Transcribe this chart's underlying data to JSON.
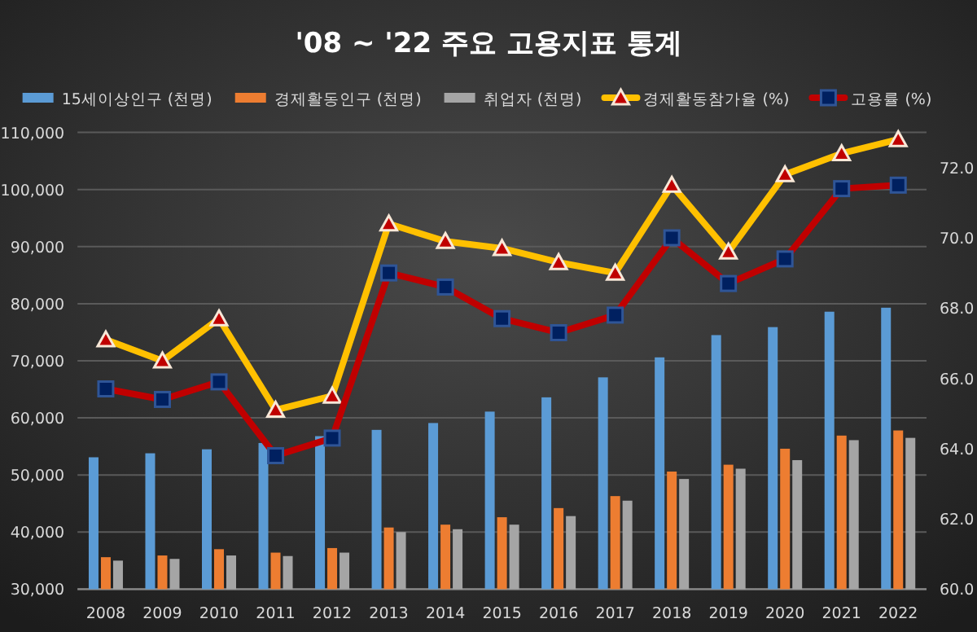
{
  "chart_data": {
    "type": "bar",
    "title": "'08 ~ '22 주요 고용지표 통계",
    "categories": [
      "2008",
      "2009",
      "2010",
      "2011",
      "2012",
      "2013",
      "2014",
      "2015",
      "2016",
      "2017",
      "2018",
      "2019",
      "2020",
      "2021",
      "2022"
    ],
    "series": [
      {
        "name": "15세이상인구 (천명)",
        "color": "#5b9bd5",
        "values": [
          53100,
          53800,
          54500,
          55600,
          56800,
          57900,
          59100,
          61100,
          63600,
          67100,
          70600,
          74500,
          75900,
          78600,
          79300
        ]
      },
      {
        "name": "경제활동인구 (천명)",
        "color": "#ed7d31",
        "values": [
          35600,
          35900,
          37000,
          36400,
          37200,
          40800,
          41300,
          42600,
          44200,
          46300,
          50600,
          51800,
          54600,
          56900,
          57800
        ]
      },
      {
        "name": "취업자 (천명)",
        "color": "#a5a5a5",
        "values": [
          35000,
          35300,
          35900,
          35800,
          36400,
          40000,
          40500,
          41300,
          42800,
          45500,
          49300,
          51100,
          52600,
          56100,
          56500
        ]
      },
      {
        "name": "경제활동참가율 (%)",
        "type": "line",
        "axis": "y2",
        "color": "#ffc000",
        "marker": "triangle",
        "values": [
          67.1,
          66.5,
          67.7,
          65.1,
          65.5,
          70.4,
          69.9,
          69.7,
          69.3,
          69.0,
          71.5,
          69.6,
          71.8,
          72.4,
          72.8
        ]
      },
      {
        "name": "고용률 (%)",
        "type": "line",
        "axis": "y2",
        "color": "#c00000",
        "marker": "square",
        "values": [
          65.7,
          65.4,
          65.9,
          63.8,
          64.3,
          69.0,
          68.6,
          67.7,
          67.3,
          67.8,
          70.0,
          68.7,
          69.4,
          71.4,
          71.5
        ]
      }
    ],
    "ylim": [
      30000,
      110000
    ],
    "yticks": [
      {
        "value": 30000,
        "label": "30,000"
      },
      {
        "value": 40000,
        "label": "40,000"
      },
      {
        "value": 50000,
        "label": "50,000"
      },
      {
        "value": 60000,
        "label": "60,000"
      },
      {
        "value": 70000,
        "label": "70,000"
      },
      {
        "value": 80000,
        "label": "80,000"
      },
      {
        "value": 90000,
        "label": "90,000"
      },
      {
        "value": 100000,
        "label": "100,000"
      },
      {
        "value": 110000,
        "label": "110,000"
      }
    ],
    "y2lim": [
      60,
      73
    ],
    "y2ticks": [
      {
        "value": 60,
        "label": "60.0"
      },
      {
        "value": 62,
        "label": "62.0"
      },
      {
        "value": 64,
        "label": "64.0"
      },
      {
        "value": 66,
        "label": "66.0"
      },
      {
        "value": 68,
        "label": "68.0"
      },
      {
        "value": 70,
        "label": "70.0"
      },
      {
        "value": 72,
        "label": "72.0"
      }
    ],
    "grid": "y",
    "legend": "top"
  }
}
